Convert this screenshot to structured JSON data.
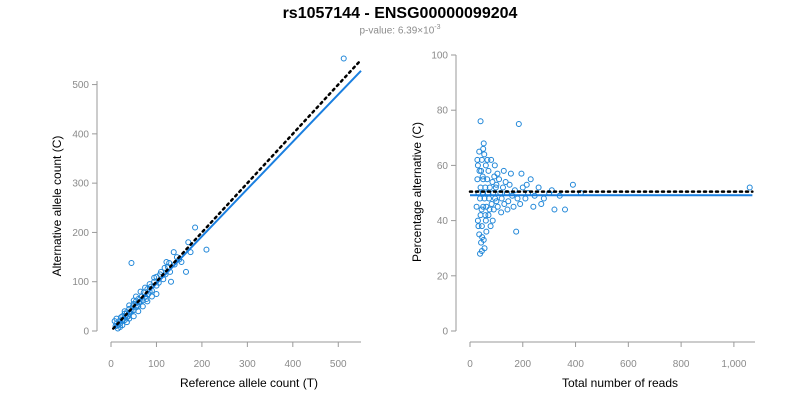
{
  "header": {
    "title": "rs1057144 - ENSG00000099204",
    "pvalue_prefix": "p-value: 6.39×10",
    "pvalue_exp": "-3"
  },
  "colors": {
    "points": "#1f86d8",
    "fit": "#1a7fe0",
    "reference": "#000000"
  },
  "chart_data": [
    {
      "type": "scatter",
      "xlabel": "Reference allele count (T)",
      "ylabel": "Alternative allele count (C)",
      "xlim": [
        0,
        550
      ],
      "ylim": [
        0,
        560
      ],
      "xticks": [
        0,
        100,
        200,
        300,
        400,
        500
      ],
      "xtick_labels": [
        "0",
        "100",
        "200",
        "300",
        "400",
        "500"
      ],
      "yticks": [
        0,
        100,
        200,
        300,
        400,
        500
      ],
      "ytick_labels": [
        "0",
        "100",
        "200",
        "300",
        "400",
        "500"
      ],
      "reference_line": {
        "slope": 1,
        "intercept": 0,
        "style": "dotted"
      },
      "fit_line": {
        "slope": 0.96,
        "intercept": 0,
        "x_range": [
          5,
          550
        ]
      },
      "points": [
        [
          10,
          10
        ],
        [
          12,
          15
        ],
        [
          15,
          12
        ],
        [
          8,
          20
        ],
        [
          18,
          20
        ],
        [
          20,
          15
        ],
        [
          22,
          28
        ],
        [
          25,
          20
        ],
        [
          25,
          30
        ],
        [
          28,
          25
        ],
        [
          30,
          35
        ],
        [
          30,
          22
        ],
        [
          32,
          30
        ],
        [
          35,
          38
        ],
        [
          35,
          28
        ],
        [
          38,
          30
        ],
        [
          40,
          45
        ],
        [
          40,
          35
        ],
        [
          42,
          38
        ],
        [
          45,
          40
        ],
        [
          48,
          50
        ],
        [
          50,
          42
        ],
        [
          50,
          55
        ],
        [
          55,
          48
        ],
        [
          55,
          60
        ],
        [
          58,
          52
        ],
        [
          60,
          65
        ],
        [
          60,
          50
        ],
        [
          62,
          58
        ],
        [
          65,
          60
        ],
        [
          68,
          70
        ],
        [
          70,
          62
        ],
        [
          72,
          78
        ],
        [
          75,
          70
        ],
        [
          78,
          65
        ],
        [
          80,
          85
        ],
        [
          82,
          75
        ],
        [
          85,
          80
        ],
        [
          88,
          90
        ],
        [
          90,
          82
        ],
        [
          95,
          100
        ],
        [
          100,
          92
        ],
        [
          100,
          110
        ],
        [
          105,
          98
        ],
        [
          110,
          120
        ],
        [
          115,
          105
        ],
        [
          120,
          115
        ],
        [
          122,
          140
        ],
        [
          125,
          130
        ],
        [
          130,
          120
        ],
        [
          132,
          100
        ],
        [
          138,
          160
        ],
        [
          140,
          135
        ],
        [
          145,
          150
        ],
        [
          150,
          145
        ],
        [
          155,
          140
        ],
        [
          165,
          120
        ],
        [
          170,
          180
        ],
        [
          175,
          160
        ],
        [
          185,
          210
        ],
        [
          210,
          165
        ],
        [
          45,
          138
        ],
        [
          15,
          5
        ],
        [
          20,
          8
        ],
        [
          12,
          25
        ],
        [
          25,
          12
        ],
        [
          35,
          18
        ],
        [
          40,
          25
        ],
        [
          50,
          30
        ],
        [
          60,
          40
        ],
        [
          70,
          50
        ],
        [
          80,
          60
        ],
        [
          90,
          70
        ],
        [
          100,
          75
        ],
        [
          30,
          40
        ],
        [
          40,
          52
        ],
        [
          50,
          62
        ],
        [
          55,
          70
        ],
        [
          65,
          80
        ],
        [
          75,
          88
        ],
        [
          85,
          95
        ],
        [
          95,
          108
        ],
        [
          108,
          115
        ],
        [
          118,
          128
        ],
        [
          128,
          138
        ],
        [
          512,
          553
        ]
      ]
    },
    {
      "type": "scatter",
      "xlabel": "Total number of reads",
      "ylabel": "Percentage alternative (C)",
      "xlim": [
        0,
        1080
      ],
      "ylim": [
        0,
        100
      ],
      "xticks": [
        0,
        200,
        400,
        600,
        800,
        1000
      ],
      "xtick_labels": [
        "0",
        "200",
        "400",
        "600",
        "800",
        "1,000"
      ],
      "yticks": [
        0,
        20,
        40,
        60,
        80,
        100
      ],
      "ytick_labels": [
        "0",
        "20",
        "40",
        "60",
        "80",
        "100"
      ],
      "reference_line": {
        "y": 50.5,
        "style": "dotted"
      },
      "fit_line": {
        "y": 49.2,
        "x_range": [
          0,
          1070
        ]
      },
      "points": [
        [
          25,
          45
        ],
        [
          28,
          55
        ],
        [
          30,
          40
        ],
        [
          30,
          60
        ],
        [
          32,
          50
        ],
        [
          35,
          35
        ],
        [
          35,
          65
        ],
        [
          38,
          48
        ],
        [
          40,
          52
        ],
        [
          40,
          42
        ],
        [
          42,
          58
        ],
        [
          45,
          38
        ],
        [
          45,
          62
        ],
        [
          48,
          50
        ],
        [
          50,
          45
        ],
        [
          50,
          55
        ],
        [
          52,
          68
        ],
        [
          55,
          30
        ],
        [
          55,
          48
        ],
        [
          58,
          52
        ],
        [
          60,
          40
        ],
        [
          60,
          60
        ],
        [
          62,
          45
        ],
        [
          65,
          55
        ],
        [
          68,
          50
        ],
        [
          70,
          42
        ],
        [
          70,
          58
        ],
        [
          72,
          48
        ],
        [
          75,
          52
        ],
        [
          78,
          38
        ],
        [
          80,
          62
        ],
        [
          82,
          46
        ],
        [
          85,
          54
        ],
        [
          88,
          50
        ],
        [
          90,
          44
        ],
        [
          92,
          56
        ],
        [
          95,
          48
        ],
        [
          98,
          52
        ],
        [
          100,
          47
        ],
        [
          100,
          53
        ],
        [
          105,
          45
        ],
        [
          110,
          55
        ],
        [
          115,
          50
        ],
        [
          120,
          48
        ],
        [
          125,
          52
        ],
        [
          130,
          46
        ],
        [
          135,
          54
        ],
        [
          140,
          50
        ],
        [
          145,
          47
        ],
        [
          150,
          53
        ],
        [
          160,
          49
        ],
        [
          170,
          51
        ],
        [
          175,
          36
        ],
        [
          180,
          48
        ],
        [
          185,
          75
        ],
        [
          190,
          46
        ],
        [
          200,
          52
        ],
        [
          210,
          48
        ],
        [
          220,
          50
        ],
        [
          230,
          55
        ],
        [
          240,
          45
        ],
        [
          260,
          52
        ],
        [
          280,
          48
        ],
        [
          300,
          50
        ],
        [
          320,
          44
        ],
        [
          360,
          44
        ],
        [
          390,
          53
        ],
        [
          420,
          50
        ],
        [
          1060,
          52
        ],
        [
          40,
          76
        ],
        [
          38,
          28
        ],
        [
          42,
          32
        ],
        [
          46,
          34
        ],
        [
          50,
          66
        ],
        [
          54,
          64
        ],
        [
          28,
          62
        ],
        [
          32,
          38
        ],
        [
          36,
          58
        ],
        [
          44,
          44
        ],
        [
          48,
          56
        ],
        [
          58,
          42
        ],
        [
          62,
          36
        ],
        [
          66,
          62
        ],
        [
          74,
          44
        ],
        [
          86,
          40
        ],
        [
          94,
          60
        ],
        [
          104,
          57
        ],
        [
          118,
          43
        ],
        [
          128,
          58
        ],
        [
          142,
          44
        ],
        [
          155,
          57
        ],
        [
          165,
          45
        ],
        [
          195,
          57
        ],
        [
          215,
          53
        ],
        [
          245,
          49
        ],
        [
          270,
          46
        ],
        [
          310,
          51
        ],
        [
          340,
          49
        ],
        [
          45,
          29
        ],
        [
          52,
          33
        ]
      ]
    }
  ]
}
